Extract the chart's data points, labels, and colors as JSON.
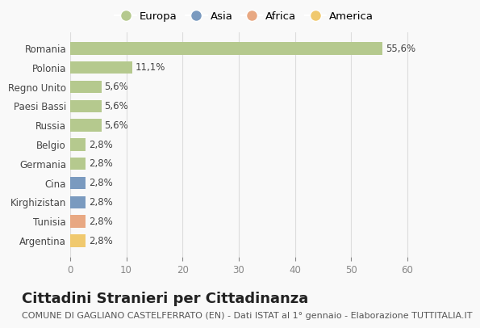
{
  "categories": [
    "Romania",
    "Polonia",
    "Regno Unito",
    "Paesi Bassi",
    "Russia",
    "Belgio",
    "Germania",
    "Cina",
    "Kirghizistan",
    "Tunisia",
    "Argentina"
  ],
  "values": [
    55.6,
    11.1,
    5.6,
    5.6,
    5.6,
    2.8,
    2.8,
    2.8,
    2.8,
    2.8,
    2.8
  ],
  "labels": [
    "55,6%",
    "11,1%",
    "5,6%",
    "5,6%",
    "5,6%",
    "2,8%",
    "2,8%",
    "2,8%",
    "2,8%",
    "2,8%",
    "2,8%"
  ],
  "colors": [
    "#b5c98e",
    "#b5c98e",
    "#b5c98e",
    "#b5c98e",
    "#b5c98e",
    "#b5c98e",
    "#b5c98e",
    "#7a9abf",
    "#7a9abf",
    "#e8a882",
    "#f0c96e"
  ],
  "legend_labels": [
    "Europa",
    "Asia",
    "Africa",
    "America"
  ],
  "legend_colors": [
    "#b5c98e",
    "#7a9abf",
    "#e8a882",
    "#f0c96e"
  ],
  "title": "Cittadini Stranieri per Cittadinanza",
  "subtitle": "COMUNE DI GAGLIANO CASTELFERRATO (EN) - Dati ISTAT al 1° gennaio - Elaborazione TUTTITALIA.IT",
  "xlim": [
    0,
    62
  ],
  "xticks": [
    0,
    10,
    20,
    30,
    40,
    50,
    60
  ],
  "background_color": "#f9f9f9",
  "grid_color": "#dddddd",
  "title_fontsize": 13,
  "subtitle_fontsize": 8,
  "label_fontsize": 8.5,
  "tick_fontsize": 8.5,
  "legend_fontsize": 9.5
}
